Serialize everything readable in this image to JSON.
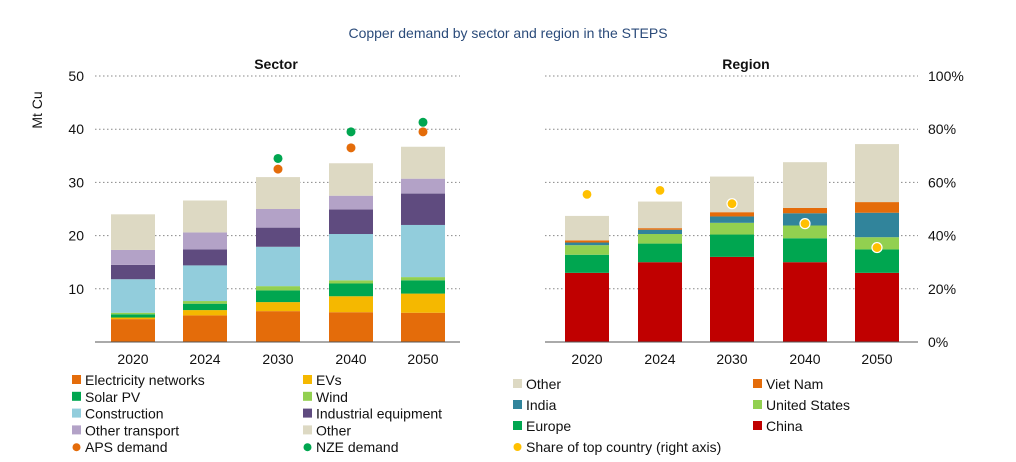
{
  "title": "Copper demand by sector and region in the STEPS",
  "chart_data": [
    {
      "type": "bar",
      "stacked": true,
      "title": "Sector",
      "ylabel": "Mt Cu",
      "ylim": [
        0,
        50
      ],
      "yticks": [
        10,
        20,
        30,
        40,
        50
      ],
      "grid": true,
      "categories": [
        "2020",
        "2024",
        "2030",
        "2040",
        "2050"
      ],
      "series": [
        {
          "name": "Electricity networks",
          "color": "#e46c0a",
          "values": [
            4.3,
            5.0,
            5.8,
            5.6,
            5.5
          ]
        },
        {
          "name": "EVs",
          "color": "#f5b800",
          "values": [
            0.3,
            1.0,
            1.7,
            3.0,
            3.6
          ]
        },
        {
          "name": "Solar PV",
          "color": "#00a650",
          "values": [
            0.6,
            1.2,
            2.2,
            2.4,
            2.5
          ]
        },
        {
          "name": "Wind",
          "color": "#92d050",
          "values": [
            0.3,
            0.5,
            0.8,
            0.6,
            0.6
          ]
        },
        {
          "name": "Construction",
          "color": "#92cddc",
          "values": [
            6.3,
            6.7,
            7.4,
            8.7,
            9.8
          ]
        },
        {
          "name": "Industrial equipment",
          "color": "#5f4b7f",
          "values": [
            2.7,
            3.0,
            3.6,
            4.6,
            5.9
          ]
        },
        {
          "name": "Other transport",
          "color": "#b3a2c7",
          "values": [
            2.8,
            3.2,
            3.5,
            2.6,
            2.8
          ]
        },
        {
          "name": "Other",
          "color": "#ddd9c3",
          "values": [
            6.7,
            6.0,
            6.0,
            6.1,
            6.0
          ]
        }
      ],
      "points": [
        {
          "name": "APS demand",
          "color": "#e46c0a",
          "values": [
            null,
            null,
            32.5,
            36.5,
            39.5
          ]
        },
        {
          "name": "NZE demand",
          "color": "#00a650",
          "values": [
            null,
            null,
            34.5,
            39.5,
            41.3
          ]
        }
      ]
    },
    {
      "type": "bar",
      "stacked": true,
      "title": "Region",
      "ylim": [
        0,
        50
      ],
      "y2label_ticks": [
        "0%",
        "20%",
        "40%",
        "60%",
        "80%",
        "100%"
      ],
      "y2lim": [
        0,
        100
      ],
      "grid": true,
      "categories": [
        "2020",
        "2024",
        "2030",
        "2040",
        "2050"
      ],
      "series": [
        {
          "name": "China",
          "color": "#c00000",
          "values": [
            13.0,
            15.0,
            16.0,
            15.0,
            13.0
          ]
        },
        {
          "name": "Europe",
          "color": "#00a650",
          "values": [
            3.4,
            3.5,
            4.2,
            4.5,
            4.4
          ]
        },
        {
          "name": "United States",
          "color": "#92d050",
          "values": [
            1.8,
            1.8,
            2.2,
            2.4,
            2.3
          ]
        },
        {
          "name": "India",
          "color": "#31849b",
          "values": [
            0.5,
            0.8,
            1.2,
            2.3,
            4.6
          ]
        },
        {
          "name": "Viet Nam",
          "color": "#e46c0a",
          "values": [
            0.4,
            0.3,
            0.8,
            1.0,
            2.0
          ]
        },
        {
          "name": "Other",
          "color": "#ddd9c3",
          "values": [
            4.6,
            5.0,
            6.7,
            8.6,
            10.9
          ]
        }
      ],
      "points": [
        {
          "name": "Share of top country (right axis)",
          "color": "#ffc000",
          "values": [
            55.5,
            57,
            52,
            44.5,
            35.5
          ]
        }
      ]
    }
  ],
  "legends": {
    "sector": [
      {
        "label": "Electricity networks",
        "color": "#e46c0a",
        "shape": "square"
      },
      {
        "label": "EVs",
        "color": "#f5b800",
        "shape": "square"
      },
      {
        "label": "Solar PV",
        "color": "#00a650",
        "shape": "square"
      },
      {
        "label": "Wind",
        "color": "#92d050",
        "shape": "square"
      },
      {
        "label": "Construction",
        "color": "#92cddc",
        "shape": "square"
      },
      {
        "label": "Industrial equipment",
        "color": "#5f4b7f",
        "shape": "square"
      },
      {
        "label": "Other transport",
        "color": "#b3a2c7",
        "shape": "square"
      },
      {
        "label": "Other",
        "color": "#ddd9c3",
        "shape": "square"
      },
      {
        "label": "APS demand",
        "color": "#e46c0a",
        "shape": "circle"
      },
      {
        "label": "NZE demand",
        "color": "#00a650",
        "shape": "circle"
      }
    ],
    "region": [
      {
        "label": "Other",
        "color": "#ddd9c3",
        "shape": "square"
      },
      {
        "label": "Viet Nam",
        "color": "#e46c0a",
        "shape": "square"
      },
      {
        "label": "India",
        "color": "#31849b",
        "shape": "square"
      },
      {
        "label": "United States",
        "color": "#92d050",
        "shape": "square"
      },
      {
        "label": "Europe",
        "color": "#00a650",
        "shape": "square"
      },
      {
        "label": "China",
        "color": "#c00000",
        "shape": "square"
      },
      {
        "label": "Share of top country (right axis)",
        "color": "#ffc000",
        "shape": "circle"
      }
    ]
  }
}
